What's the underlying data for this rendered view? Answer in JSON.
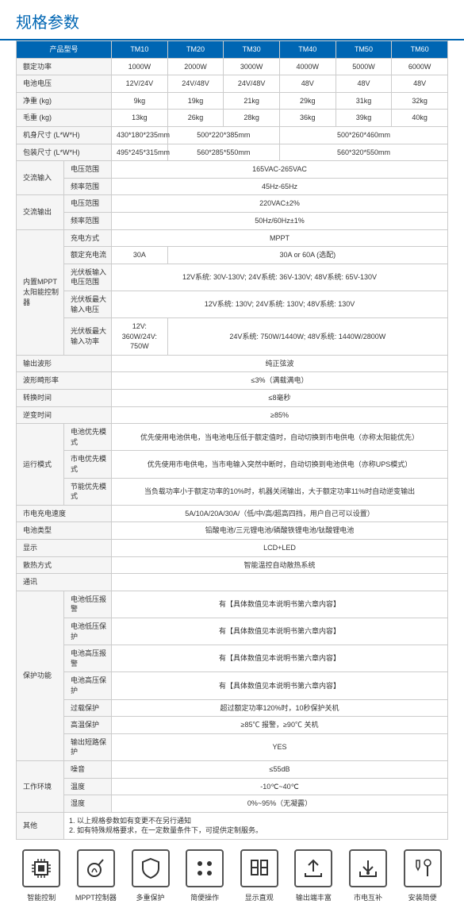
{
  "title": "规格参数",
  "headers": [
    "产品型号",
    "TM10",
    "TM20",
    "TM30",
    "TM40",
    "TM50",
    "TM60"
  ],
  "rows": [
    {
      "label": "额定功率",
      "cells": [
        "1000W",
        "2000W",
        "3000W",
        "4000W",
        "5000W",
        "6000W"
      ]
    },
    {
      "label": "电池电压",
      "cells": [
        "12V/24V",
        "24V/48V",
        "24V/48V",
        "48V",
        "48V",
        "48V"
      ]
    },
    {
      "label": "净重 (kg)",
      "cells": [
        "9kg",
        "19kg",
        "21kg",
        "29kg",
        "31kg",
        "32kg"
      ]
    },
    {
      "label": "毛重 (kg)",
      "cells": [
        "13kg",
        "26kg",
        "28kg",
        "36kg",
        "39kg",
        "40kg"
      ]
    },
    {
      "label": "机身尺寸 (L*W*H)",
      "cells": [
        {
          "text": "430*180*235mm",
          "span": 1
        },
        {
          "text": "500*220*385mm",
          "span": 2
        },
        {
          "text": "500*260*460mm",
          "span": 3
        }
      ]
    },
    {
      "label": "包装尺寸 (L*W*H)",
      "cells": [
        {
          "text": "495*245*315mm",
          "span": 1
        },
        {
          "text": "560*285*550mm",
          "span": 2
        },
        {
          "text": "560*320*550mm",
          "span": 3
        }
      ]
    }
  ],
  "groupRows": [
    {
      "group": "交流输入",
      "label": "电压范围",
      "value": "165VAC-265VAC"
    },
    {
      "group": "",
      "label": "频率范围",
      "value": "45Hz-65Hz"
    },
    {
      "group": "交流输出",
      "label": "电压范围",
      "value": "220VAC±2%"
    },
    {
      "group": "",
      "label": "频率范围",
      "value": "50Hz/60Hz±1%"
    },
    {
      "group": "内置MPPT太阳能控制器",
      "label": "充电方式",
      "value": "MPPT"
    },
    {
      "group": "",
      "label": "额定充电流",
      "cells": [
        {
          "text": "30A",
          "span": 1
        },
        {
          "text": "30A or 60A (选配)",
          "span": 5
        }
      ]
    },
    {
      "group": "",
      "label": "光伏板输入电压范围",
      "value": "12V系统: 30V-130V;  24V系统: 36V-130V;  48V系统: 65V-130V"
    },
    {
      "group": "",
      "label": "光伏板最大输入电压",
      "value": "12V系统: 130V;  24V系统: 130V;  48V系统: 130V"
    },
    {
      "group": "",
      "label": "光伏板最大输入功率",
      "cells": [
        {
          "text": "12V: 360W/24V: 750W",
          "span": 1
        },
        {
          "text": "24V系统: 750W/1440W;  48V系统: 1440W/2800W",
          "span": 5
        }
      ]
    }
  ],
  "fullRows": [
    {
      "label": "输出波形",
      "value": "纯正弦波"
    },
    {
      "label": "波形畸形率",
      "value": "≤3%（满载满电）"
    },
    {
      "label": "转换时间",
      "value": "≤8毫秒"
    },
    {
      "label": "逆变时间",
      "value": "≥85%"
    }
  ],
  "runModes": [
    {
      "group": "运行模式",
      "label": "电池优先模式",
      "value": "优先使用电池供电，当电池电压低于额定值时，自动切换到市电供电（亦称太阳能优先）"
    },
    {
      "group": "",
      "label": "市电优先模式",
      "value": "优先使用市电供电，当市电输入突然中断时，自动切换到电池供电（亦称UPS模式）"
    },
    {
      "group": "",
      "label": "节能优先模式",
      "value": "当负载功率小于额定功率的10%时，机器关闭输出，大于额定功率11%时自动逆变输出"
    }
  ],
  "simpleRows": [
    {
      "label": "市电充电速度",
      "value": "5A/10A/20A/30A/（低/中/高/超高四挡，用户自己可以设置）"
    },
    {
      "label": "电池类型",
      "value": "铅酸电池/三元锂电池/磷酸铁锂电池/钛酸锂电池"
    },
    {
      "label": "显示",
      "value": "LCD+LED"
    },
    {
      "label": "散热方式",
      "value": "智能温控自动散热系统"
    },
    {
      "label": "通讯",
      "value": ""
    }
  ],
  "protection": [
    {
      "group": "保护功能",
      "label": "电池低压报警",
      "value": "有【具体数值见本说明书第六章内容】"
    },
    {
      "group": "",
      "label": "电池低压保护",
      "value": "有【具体数值见本说明书第六章内容】"
    },
    {
      "group": "",
      "label": "电池高压报警",
      "value": "有【具体数值见本说明书第六章内容】"
    },
    {
      "group": "",
      "label": "电池高压保护",
      "value": "有【具体数值见本说明书第六章内容】"
    },
    {
      "group": "",
      "label": "过载保护",
      "value": "超过额定功率120%时，10秒保护关机"
    },
    {
      "group": "",
      "label": "高温保护",
      "value": "≥85℃ 报警，≥90℃ 关机"
    },
    {
      "group": "",
      "label": "输出短路保护",
      "value": "YES"
    }
  ],
  "env": [
    {
      "group": "工作环境",
      "label": "噪音",
      "value": "≤55dB"
    },
    {
      "group": "",
      "label": "温度",
      "value": "-10℃~40℃"
    },
    {
      "group": "",
      "label": "湿度",
      "value": "0%~95%（无凝露）"
    }
  ],
  "other": {
    "label": "其他",
    "lines": [
      "1. 以上规格参数如有变更不在另行通知",
      "2. 如有特殊规格要求，在一定数量条件下，可提供定制服务。"
    ]
  },
  "icons": [
    {
      "name": "chip-icon",
      "label": "智能控制"
    },
    {
      "name": "mppt-icon",
      "label": "MPPT控制器"
    },
    {
      "name": "shield-icon",
      "label": "多重保护"
    },
    {
      "name": "dots-icon",
      "label": "简便操作"
    },
    {
      "name": "display-icon",
      "label": "显示直观"
    },
    {
      "name": "output-icon",
      "label": "输出端丰富"
    },
    {
      "name": "plug-icon",
      "label": "市电互补"
    },
    {
      "name": "tools-icon",
      "label": "安装简便"
    }
  ],
  "style": {
    "headerBg": "#0066b3",
    "border": "#ccc",
    "lhBg": "#f5f5f5",
    "titleColor": "#0066b3"
  }
}
